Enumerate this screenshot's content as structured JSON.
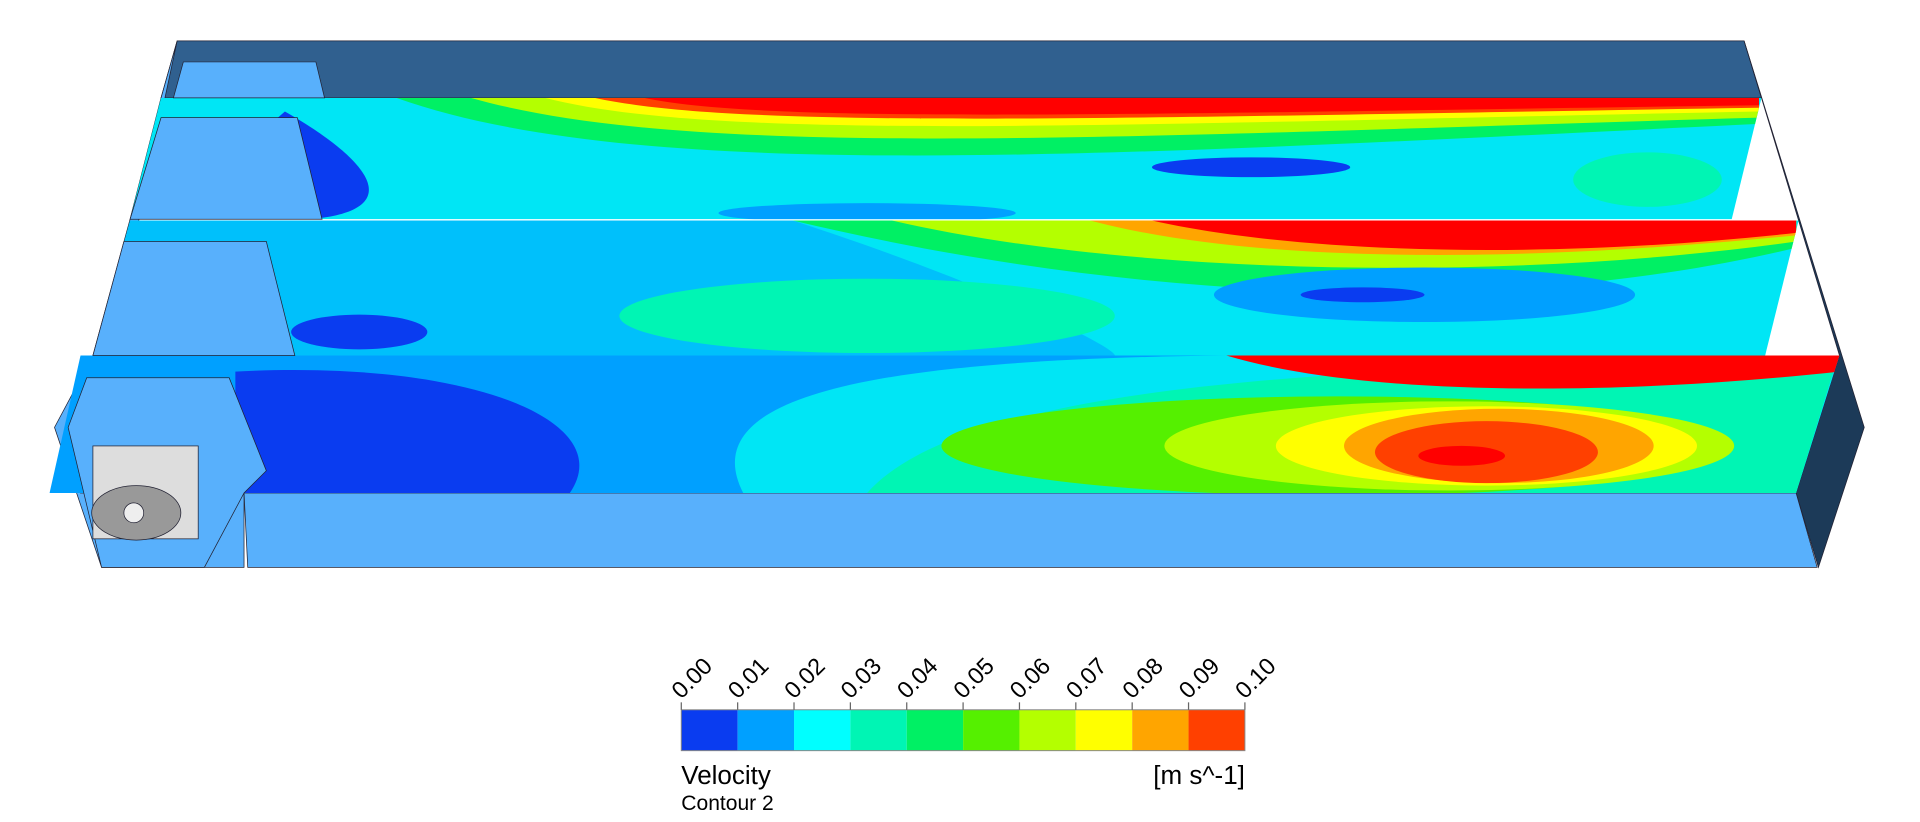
{
  "colorbar": {
    "title": "Velocity",
    "subtitle": "Contour 2",
    "unit": "[m s^-1]",
    "ticks": [
      {
        "value": 0,
        "label": "0.00"
      },
      {
        "value": 0.01,
        "label": "0.01"
      },
      {
        "value": 0.02,
        "label": "0.02"
      },
      {
        "value": 0.03,
        "label": "0.03"
      },
      {
        "value": 0.04,
        "label": "0.04"
      },
      {
        "value": 0.05,
        "label": "0.05"
      },
      {
        "value": 0.06,
        "label": "0.06"
      },
      {
        "value": 0.07,
        "label": "0.07"
      },
      {
        "value": 0.08,
        "label": "0.08"
      },
      {
        "value": 0.09,
        "label": "0.09"
      },
      {
        "value": 0.1,
        "label": "0.10"
      }
    ],
    "colors": [
      "#0a3cf0",
      "#00a0ff",
      "#00ffff",
      "#00f5b4",
      "#00f064",
      "#55f000",
      "#b4ff00",
      "#ffff00",
      "#ffa500",
      "#ff4000"
    ]
  }
}
